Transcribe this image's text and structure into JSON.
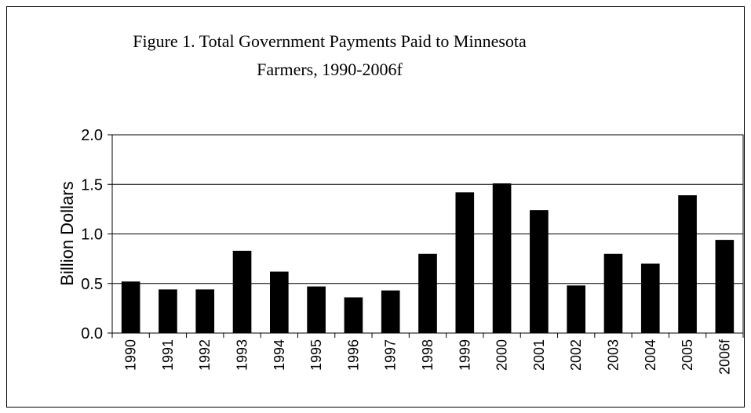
{
  "chart_data": {
    "type": "bar",
    "title": [
      "Figure 1. Total Government Payments Paid to Minnesota",
      "Farmers, 1990-2006f"
    ],
    "y_label": "Billion Dollars",
    "categories": [
      "1990",
      "1991",
      "1992",
      "1993",
      "1994",
      "1995",
      "1996",
      "1997",
      "1998",
      "1999",
      "2000",
      "2001",
      "2002",
      "2003",
      "2004",
      "2005",
      "2006f"
    ],
    "values": [
      0.52,
      0.44,
      0.44,
      0.83,
      0.62,
      0.47,
      0.36,
      0.43,
      0.8,
      1.42,
      1.51,
      1.24,
      0.48,
      0.8,
      0.7,
      1.39,
      0.94
    ],
    "color": "#000000",
    "ylim": [
      0,
      2
    ],
    "yticks": [
      {
        "value": 0,
        "label": "0.0"
      },
      {
        "value": 0.5,
        "label": "0.5"
      },
      {
        "value": 1,
        "label": "1.0"
      },
      {
        "value": 1.5,
        "label": "1.5"
      },
      {
        "value": 2,
        "label": "2.0"
      }
    ],
    "grid": true
  }
}
